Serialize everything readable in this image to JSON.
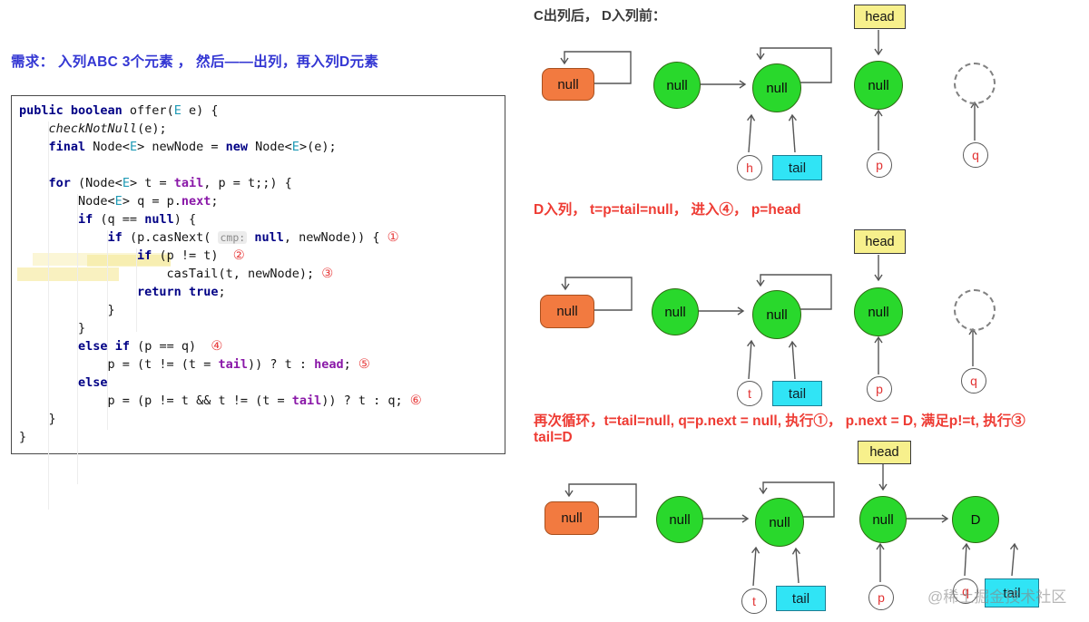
{
  "requirement": "需求： 入列ABC 3个元素 ， 然后——出列，再入列D元素",
  "code": {
    "lines": [
      [
        {
          "c": "kw",
          "t": "public boolean"
        },
        {
          "c": "pl",
          "t": " offer("
        },
        {
          "c": "tp",
          "t": "E"
        },
        {
          "c": "pl",
          "t": " e) {"
        }
      ],
      [
        {
          "c": "pl",
          "t": "    "
        },
        {
          "c": "it",
          "t": "checkNotNull"
        },
        {
          "c": "pl",
          "t": "(e);"
        }
      ],
      [
        {
          "c": "pl",
          "t": "    "
        },
        {
          "c": "kw",
          "t": "final"
        },
        {
          "c": "pl",
          "t": " Node<"
        },
        {
          "c": "tp",
          "t": "E"
        },
        {
          "c": "pl",
          "t": "> newNode = "
        },
        {
          "c": "kw",
          "t": "new"
        },
        {
          "c": "pl",
          "t": " Node<"
        },
        {
          "c": "tp",
          "t": "E"
        },
        {
          "c": "pl",
          "t": ">(e);"
        }
      ],
      [],
      [
        {
          "c": "pl",
          "t": "    "
        },
        {
          "c": "kw",
          "t": "for"
        },
        {
          "c": "pl",
          "t": " (Node<"
        },
        {
          "c": "tp",
          "t": "E"
        },
        {
          "c": "pl",
          "t": "> t = "
        },
        {
          "c": "fld",
          "t": "tail"
        },
        {
          "c": "pl",
          "t": ", p = t;;) {"
        }
      ],
      [
        {
          "c": "pl",
          "t": "        Node<"
        },
        {
          "c": "tp",
          "t": "E"
        },
        {
          "c": "pl",
          "t": "> q = p."
        },
        {
          "c": "fld",
          "t": "next"
        },
        {
          "c": "pl",
          "t": ";"
        }
      ],
      [
        {
          "c": "pl",
          "t": "        "
        },
        {
          "c": "kw",
          "t": "if"
        },
        {
          "c": "pl",
          "t": " (q == "
        },
        {
          "c": "kw",
          "t": "null"
        },
        {
          "c": "pl",
          "t": ") {"
        }
      ],
      [
        {
          "c": "pl",
          "t": "            "
        },
        {
          "c": "kw",
          "t": "if"
        },
        {
          "c": "pl",
          "t": " (p.casNext( "
        },
        {
          "c": "hint",
          "t": "cmp:"
        },
        {
          "c": "pl",
          "t": " "
        },
        {
          "c": "kw",
          "t": "null"
        },
        {
          "c": "pl",
          "t": ", newNode)) { "
        },
        {
          "c": "num",
          "t": "①"
        }
      ],
      [
        {
          "c": "pl",
          "t": "                "
        },
        {
          "c": "kw",
          "t": "if"
        },
        {
          "c": "pl",
          "t": " (p != t)  "
        },
        {
          "c": "num",
          "t": "②"
        }
      ],
      [
        {
          "c": "pl",
          "t": "                    casTail(t, newNode); "
        },
        {
          "c": "num",
          "t": "③"
        }
      ],
      [
        {
          "c": "pl",
          "t": "                "
        },
        {
          "c": "kw",
          "t": "return"
        },
        {
          "c": "pl",
          "t": " "
        },
        {
          "c": "kw",
          "t": "true"
        },
        {
          "c": "pl",
          "t": ";"
        }
      ],
      [
        {
          "c": "pl",
          "t": "            }"
        }
      ],
      [
        {
          "c": "pl",
          "t": "        }"
        }
      ],
      [
        {
          "c": "pl",
          "t": "        "
        },
        {
          "c": "kw",
          "t": "else"
        },
        {
          "c": "pl",
          "t": " "
        },
        {
          "c": "kw",
          "t": "if"
        },
        {
          "c": "pl",
          "t": " (p == q)  "
        },
        {
          "c": "num",
          "t": "④"
        }
      ],
      [
        {
          "c": "pl",
          "t": "            p = (t != (t = "
        },
        {
          "c": "fld",
          "t": "tail"
        },
        {
          "c": "pl",
          "t": ")) ? t : "
        },
        {
          "c": "fld",
          "t": "head"
        },
        {
          "c": "pl",
          "t": "; "
        },
        {
          "c": "num",
          "t": "⑤"
        }
      ],
      [
        {
          "c": "pl",
          "t": "        "
        },
        {
          "c": "kw",
          "t": "else"
        }
      ],
      [
        {
          "c": "pl",
          "t": "            p = (p != t && t != (t = "
        },
        {
          "c": "fld",
          "t": "tail"
        },
        {
          "c": "pl",
          "t": ")) ? t : q; "
        },
        {
          "c": "num",
          "t": "⑥"
        }
      ],
      [
        {
          "c": "pl",
          "t": "    }"
        }
      ],
      [
        {
          "c": "pl",
          "t": "}"
        }
      ]
    ]
  },
  "diagram1": {
    "title": "C出列后， D入列前：",
    "head": "head",
    "node1": "null",
    "node2": "null",
    "node3": "null",
    "node4": "null",
    "ptr1": "h",
    "tail": "tail",
    "ptr2": "p",
    "ptr3": "q"
  },
  "diagram2": {
    "annotation": "D入列， t=p=tail=null， 进入④， p=head",
    "head": "head",
    "node1": "null",
    "node2": "null",
    "node3": "null",
    "node4": "null",
    "ptr1": "t",
    "tail": "tail",
    "ptr2": "p",
    "ptr3": "q"
  },
  "diagram3": {
    "annotation_line1": "再次循环，t=tail=null,  q=p.next = null, 执行①， p.next = D, 满足p!=t, 执行③",
    "annotation_line2": "tail=D",
    "head": "head",
    "node1": "null",
    "node2": "null",
    "node3": "null",
    "node4": "D",
    "ptr1": "t",
    "tail": "tail",
    "ptr2": "p",
    "ptr3": "q",
    "tail2": "tail"
  },
  "watermark": "@稀土掘金技术社区"
}
